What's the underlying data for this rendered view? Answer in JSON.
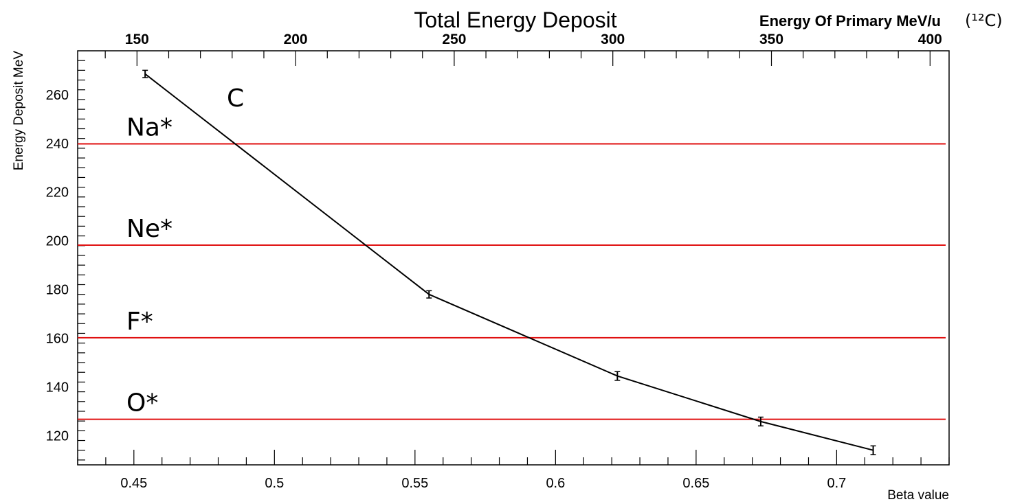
{
  "chart_data": {
    "type": "line",
    "title": "Total Energy Deposit",
    "xlabel": "Beta value",
    "ylabel": "Energy Deposit MeV",
    "xlim": [
      0.43,
      0.74
    ],
    "ylim": [
      108,
      278
    ],
    "x_ticks": [
      0.45,
      0.5,
      0.55,
      0.6,
      0.65,
      0.7
    ],
    "x_tick_labels": [
      "0.45",
      "0.5",
      "0.55",
      "0.6",
      "0.65",
      "0.7"
    ],
    "y_ticks": [
      120,
      140,
      160,
      180,
      200,
      220,
      240,
      260
    ],
    "y_tick_labels": [
      "120",
      "140",
      "160",
      "180",
      "200",
      "220",
      "240",
      "260"
    ],
    "top_axis": {
      "label": "Energy Of Primary MeV/u",
      "label_suffix": "(¹²C)",
      "ticks": [
        150,
        200,
        250,
        300,
        350,
        400
      ],
      "tick_labels": [
        "150",
        "200",
        "250",
        "300",
        "350",
        "400"
      ]
    },
    "series": [
      {
        "name": "C",
        "color": "#000000",
        "points": [
          {
            "x": 0.454,
            "y": 268.5,
            "err": 1.5
          },
          {
            "x": 0.555,
            "y": 178.0,
            "err": 1.5
          },
          {
            "x": 0.622,
            "y": 144.5,
            "err": 1.8
          },
          {
            "x": 0.673,
            "y": 125.8,
            "err": 1.8
          },
          {
            "x": 0.713,
            "y": 114.0,
            "err": 1.8
          }
        ]
      }
    ],
    "thresholds": [
      {
        "label": "Na*",
        "y": 239.8,
        "color": "#e01010"
      },
      {
        "label": "Ne*",
        "y": 198.2,
        "color": "#e01010"
      },
      {
        "label": "F*",
        "y": 160.2,
        "color": "#e01010"
      },
      {
        "label": "O*",
        "y": 126.7,
        "color": "#e01010"
      }
    ]
  }
}
